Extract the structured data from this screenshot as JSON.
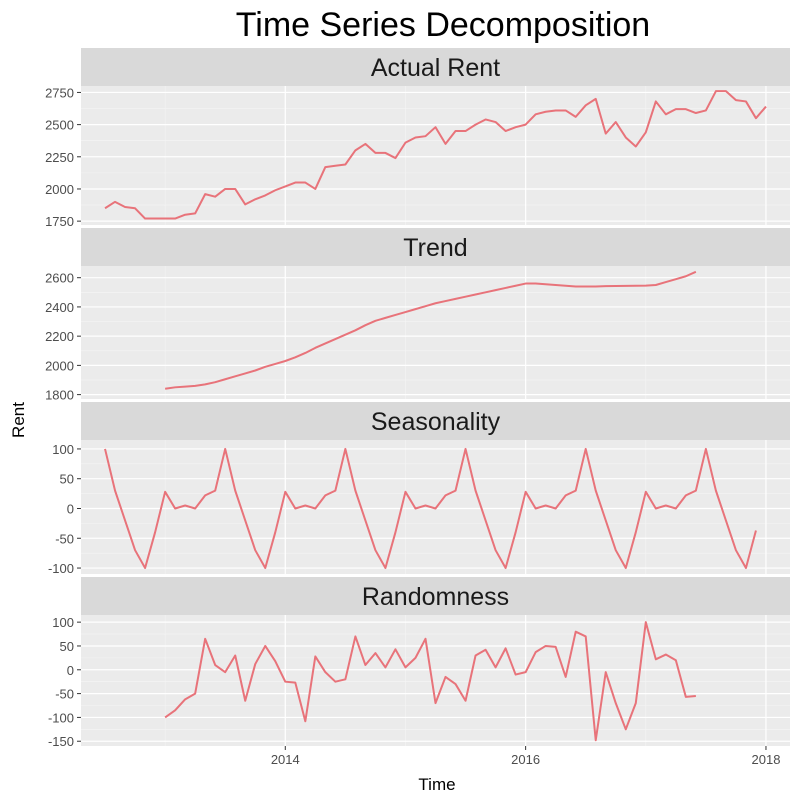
{
  "chart_data": {
    "type": "line",
    "title": "Time Series Decomposition",
    "xlabel": "Time",
    "ylabel": "Rent",
    "xlim": [
      2012.3,
      2018.2
    ],
    "x_ticks": [
      2014,
      2016,
      2018
    ],
    "x_tick_labels": [
      "2014",
      "2016",
      "2018"
    ],
    "grid": true,
    "line_color": "#e8737a",
    "panel_background": "#ebebeb",
    "strip_background": "#d9d9d9",
    "panels": [
      {
        "name": "Actual Rent",
        "ylim": [
          1720,
          2800
        ],
        "y_ticks": [
          1750,
          2000,
          2250,
          2500,
          2750
        ],
        "y_tick_labels": [
          "1750",
          "2000",
          "2250",
          "2500",
          "2750"
        ],
        "start": 2012.5,
        "values": [
          1850,
          1900,
          1860,
          1850,
          1770,
          1770,
          1770,
          1770,
          1800,
          1810,
          1960,
          1940,
          2000,
          2000,
          1880,
          1920,
          1950,
          1990,
          2020,
          2050,
          2050,
          2000,
          2170,
          2180,
          2190,
          2300,
          2350,
          2280,
          2280,
          2240,
          2360,
          2400,
          2410,
          2480,
          2350,
          2450,
          2450,
          2500,
          2540,
          2520,
          2450,
          2480,
          2500,
          2580,
          2600,
          2610,
          2610,
          2560,
          2650,
          2700,
          2430,
          2520,
          2400,
          2330,
          2440,
          2680,
          2580,
          2620,
          2620,
          2590,
          2610,
          2760,
          2760,
          2690,
          2680,
          2550,
          2640
        ]
      },
      {
        "name": "Trend",
        "ylim": [
          1770,
          2680
        ],
        "y_ticks": [
          1800,
          2000,
          2200,
          2400,
          2600
        ],
        "y_tick_labels": [
          "1800",
          "2000",
          "2200",
          "2400",
          "2600"
        ],
        "start": 2013.0,
        "values": [
          1840,
          1850,
          1855,
          1860,
          1870,
          1885,
          1905,
          1925,
          1945,
          1965,
          1990,
          2010,
          2030,
          2055,
          2085,
          2120,
          2150,
          2180,
          2210,
          2240,
          2275,
          2305,
          2325,
          2345,
          2365,
          2385,
          2405,
          2425,
          2440,
          2455,
          2470,
          2485,
          2500,
          2515,
          2530,
          2545,
          2560,
          2560,
          2555,
          2550,
          2545,
          2540,
          2540,
          2540,
          2542,
          2543,
          2544,
          2545,
          2546,
          2550,
          2570,
          2590,
          2610,
          2640
        ]
      },
      {
        "name": "Seasonality",
        "ylim": [
          -110,
          115
        ],
        "y_ticks": [
          -100,
          -50,
          0,
          50,
          100
        ],
        "y_tick_labels": [
          "-100",
          "-50",
          "0",
          "50",
          "100"
        ],
        "start": 2012.5,
        "values": [
          100,
          30,
          -20,
          -70,
          -100,
          -40,
          28,
          0,
          5,
          0,
          22,
          30,
          100,
          30,
          -20,
          -70,
          -100,
          -40,
          28,
          0,
          5,
          0,
          22,
          30,
          100,
          30,
          -20,
          -70,
          -100,
          -40,
          28,
          0,
          5,
          0,
          22,
          30,
          100,
          30,
          -20,
          -70,
          -100,
          -40,
          28,
          0,
          5,
          0,
          22,
          30,
          100,
          30,
          -20,
          -70,
          -100,
          -40,
          28,
          0,
          5,
          0,
          22,
          30,
          100,
          30,
          -20,
          -70,
          -100,
          -37
        ]
      },
      {
        "name": "Randomness",
        "ylim": [
          -160,
          115
        ],
        "y_ticks": [
          -150,
          -100,
          -50,
          0,
          50,
          100
        ],
        "y_tick_labels": [
          "-150",
          "-100",
          "-50",
          "0",
          "50",
          "100"
        ],
        "start": 2013.0,
        "values": [
          -100,
          -85,
          -62,
          -50,
          65,
          10,
          -5,
          30,
          -65,
          12,
          50,
          18,
          -25,
          -27,
          -108,
          28,
          -5,
          -25,
          -20,
          70,
          10,
          35,
          5,
          43,
          5,
          25,
          65,
          -70,
          -15,
          -30,
          -65,
          30,
          42,
          5,
          45,
          -10,
          -5,
          37,
          50,
          48,
          -15,
          80,
          70,
          -148,
          -5,
          -70,
          -125,
          -70,
          100,
          22,
          32,
          20,
          -57,
          -55
        ]
      }
    ]
  }
}
